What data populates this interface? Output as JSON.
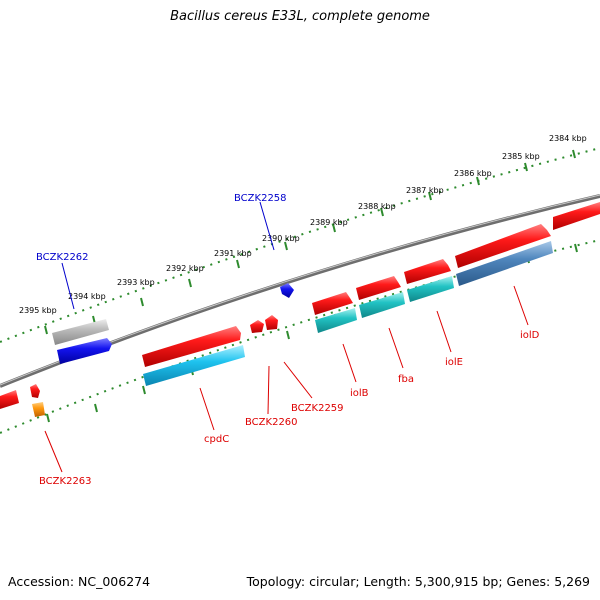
{
  "map": {
    "title": "Bacillus cereus E33L, complete genome",
    "accession_text": "Accession: NC_006274",
    "topology_text": "Topology: circular; Length: 5,300,915 bp; Genes: 5,269"
  },
  "colors": {
    "backbone": "#777777",
    "dotted_ring": "#2e8b2e",
    "red_gene": "#ee1111",
    "cyan_gene": "#19b9e6",
    "teal_gene": "#1fb8bf",
    "steel_gene": "#4a7fb5",
    "blue_gene": "#1010ee",
    "grey_gene": "#aaaaaa",
    "orange_gene": "#ff8c00",
    "label_red": "#dd0000",
    "label_blue": "#0000cc"
  },
  "kbp_ticks": [
    "2384 kbp",
    "2385 kbp",
    "2386 kbp",
    "2387 kbp",
    "2388 kbp",
    "2389 kbp",
    "2390 kbp",
    "2391 kbp",
    "2392 kbp",
    "2393 kbp",
    "2394 kbp",
    "2395 kbp"
  ],
  "gene_labels": [
    "BCZK2258",
    "BCZK2262",
    "BCZK2259",
    "BCZK2260",
    "BCZK2263",
    "cpdC",
    "iolB",
    "fba",
    "iolE",
    "iolD"
  ],
  "gene_colors": [
    "blue",
    "blue",
    "red",
    "red",
    "red",
    "red",
    "red",
    "red",
    "red",
    "red"
  ]
}
